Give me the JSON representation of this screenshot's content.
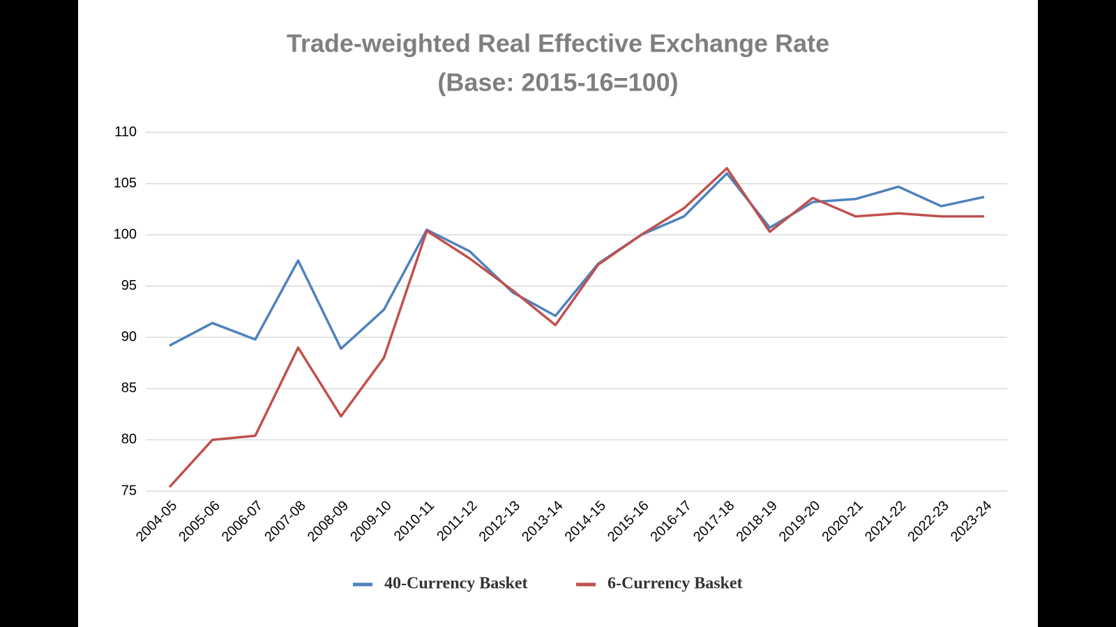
{
  "chart_data": {
    "type": "line",
    "title": "Trade-weighted Real Effective Exchange Rate",
    "subtitle": "(Base: 2015-16=100)",
    "categories": [
      "2004-05",
      "2005-06",
      "2006-07",
      "2007-08",
      "2008-09",
      "2009-10",
      "2010-11",
      "2011-12",
      "2012-13",
      "2013-14",
      "2014-15",
      "2015-16",
      "2016-17",
      "2017-18",
      "2018-19",
      "2019-20",
      "2020-21",
      "2021-22",
      "2022-23",
      "2023-24"
    ],
    "series": [
      {
        "name": "40-Currency Basket",
        "color": "#4f81bd",
        "values": [
          89.2,
          91.4,
          89.8,
          97.5,
          88.9,
          92.7,
          100.5,
          98.4,
          94.4,
          92.1,
          97.2,
          100,
          101.8,
          106,
          100.7,
          103.2,
          103.5,
          104.7,
          102.8,
          103.7
        ]
      },
      {
        "name": "6-Currency Basket",
        "color": "#c0504d",
        "values": [
          75.4,
          80,
          80.4,
          89,
          82.3,
          88,
          100.4,
          97.7,
          94.6,
          91.2,
          97.1,
          100,
          102.6,
          106.5,
          100.3,
          103.6,
          101.8,
          102.1,
          101.8,
          101.8
        ]
      }
    ],
    "ylim": [
      75,
      110
    ],
    "yticks": [
      75,
      80,
      85,
      90,
      95,
      100,
      105,
      110
    ],
    "grid": true,
    "legend": "bottom"
  }
}
